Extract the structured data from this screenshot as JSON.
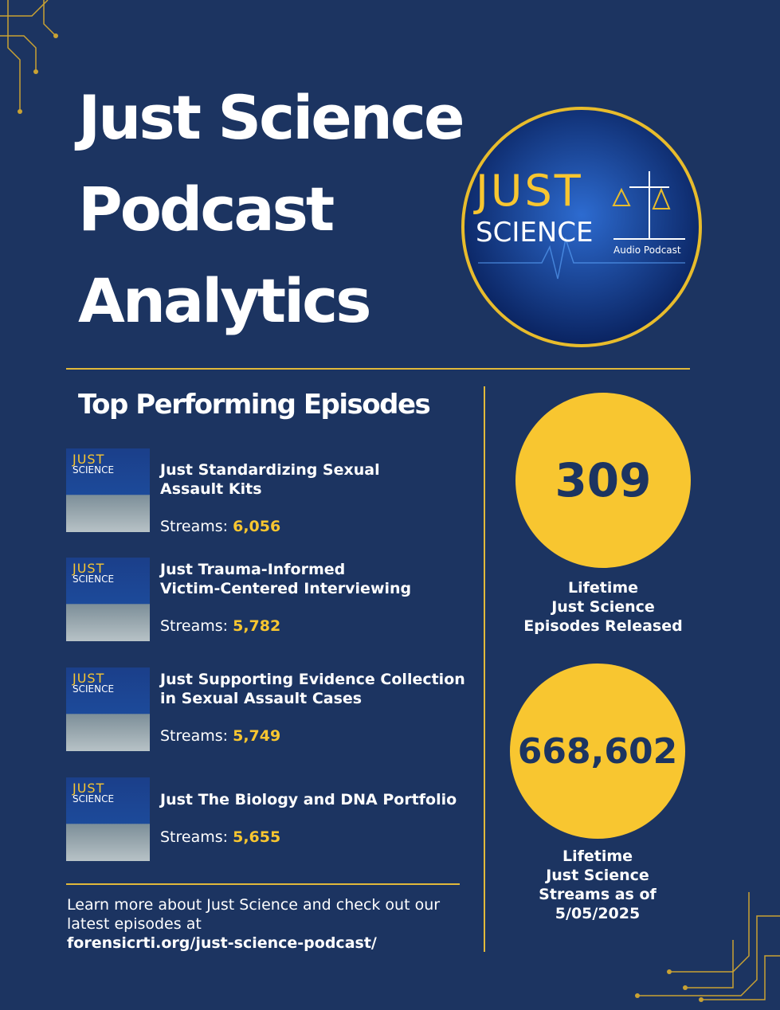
{
  "header": {
    "title_lines": [
      "Just Science",
      "Podcast",
      "Analytics"
    ]
  },
  "logo": {
    "line1": "JUST",
    "line2": "SCIENCE",
    "subtitle": "Audio Podcast"
  },
  "episodes_section": {
    "heading": "Top Performing Episodes",
    "streams_label": "Streams:",
    "episodes": [
      {
        "title_lines": [
          "Just Standardizing Sexual",
          "Assault Kits"
        ],
        "streams": "6,056"
      },
      {
        "title_lines": [
          "Just Trauma-Informed",
          "Victim-Centered Interviewing"
        ],
        "streams": "5,782"
      },
      {
        "title_lines": [
          "Just Supporting Evidence Collection",
          "in Sexual Assault Cases"
        ],
        "streams": "5,749"
      },
      {
        "title_lines": [
          "Just The Biology and DNA Portfolio"
        ],
        "streams": "5,655"
      }
    ]
  },
  "stats": [
    {
      "value": "309",
      "label_lines": [
        "Lifetime",
        "Just Science",
        "Episodes Released"
      ]
    },
    {
      "value": "668,602",
      "label_lines": [
        "Lifetime",
        "Just Science",
        "Streams as of",
        "5/05/2025"
      ]
    }
  ],
  "footer": {
    "lines": [
      "Learn more about Just Science and check out our",
      "latest episodes at"
    ],
    "link": "forensicrti.org/just-science-podcast/"
  }
}
